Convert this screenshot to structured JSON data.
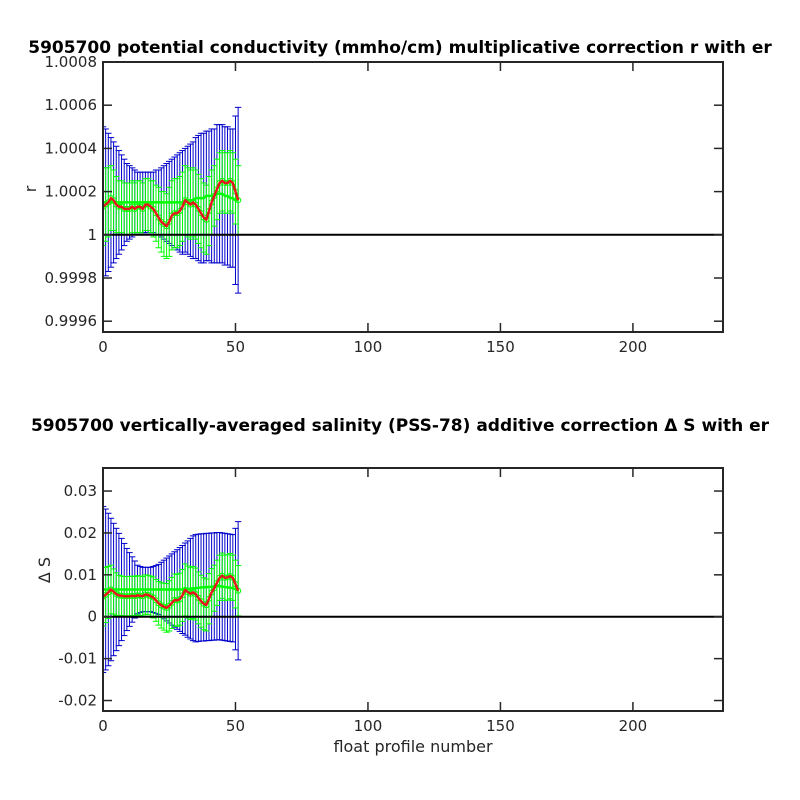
{
  "chart_data": [
    {
      "type": "line",
      "title": "5905700 potential conductivity (mmho/cm) multiplicative correction r with er",
      "xlabel": "",
      "ylabel": "r",
      "xlim": [
        0,
        234
      ],
      "ylim": [
        0.99955,
        1.0008
      ],
      "xticks": [
        0,
        50,
        100,
        150,
        200
      ],
      "xtick_labels": [
        "0",
        "50",
        "100",
        "150",
        "200"
      ],
      "yticks": [
        0.9996,
        0.9998,
        1.0,
        1.0002,
        1.0004,
        1.0006,
        1.0008
      ],
      "ytick_labels": [
        "0.9996",
        "0.9998",
        "1",
        "1.0002",
        "1.0004",
        "1.0006",
        "1.0008"
      ],
      "grid": false,
      "reference_line": 1.0,
      "colors": {
        "estimate": "#e31a1c",
        "estimate_error": "#00ff00",
        "error_bound": "#0000cc",
        "reference": "#000000"
      },
      "x": [
        0,
        1,
        2,
        3,
        4,
        5,
        6,
        7,
        8,
        9,
        10,
        11,
        12,
        13,
        14,
        15,
        16,
        17,
        18,
        19,
        20,
        21,
        22,
        23,
        24,
        25,
        26,
        27,
        28,
        29,
        30,
        31,
        32,
        33,
        34,
        35,
        36,
        37,
        38,
        39,
        40,
        41,
        42,
        43,
        44,
        45,
        46,
        47,
        48,
        49,
        50,
        51
      ],
      "series": [
        {
          "role": "estimate",
          "y": [
            1.00013,
            1.00014,
            1.00015,
            1.00017,
            1.00016,
            1.00014,
            1.00013,
            1.00013,
            1.00012,
            1.00012,
            1.00012,
            1.00013,
            1.00012,
            1.00013,
            1.00013,
            1.00012,
            1.00014,
            1.00014,
            1.00013,
            1.00012,
            1.0001,
            1.00008,
            1.00006,
            1.00005,
            1.00004,
            1.00006,
            1.00009,
            1.0001,
            1.0001,
            1.00011,
            1.00013,
            1.00016,
            1.00015,
            1.00014,
            1.00015,
            1.00014,
            1.00012,
            1.0001,
            1.00008,
            1.00007,
            1.00011,
            1.00015,
            1.00018,
            1.00021,
            1.00024,
            1.00025,
            1.00024,
            1.00024,
            1.00025,
            1.00024,
            1.0002,
            1.00016
          ],
          "err": [
            0.00018,
            0.00017,
            0.00016,
            0.00015,
            0.00014,
            0.00013,
            0.00012,
            0.00012,
            0.00012,
            0.00012,
            0.00012,
            0.00012,
            0.00012,
            0.00012,
            0.00012,
            0.00012,
            0.00012,
            0.00012,
            0.00012,
            0.00013,
            0.00013,
            0.00014,
            0.00014,
            0.00015,
            0.00015,
            0.00016,
            0.00016,
            0.00016,
            0.00016,
            0.00016,
            0.00016,
            0.00016,
            0.00016,
            0.00016,
            0.00016,
            0.00016,
            0.00016,
            0.00016,
            0.00016,
            0.00016,
            0.00016,
            0.00015,
            0.00014,
            0.00014,
            0.00014,
            0.00014,
            0.00014,
            0.00014,
            0.00014,
            0.00014,
            0.00015,
            0.00016
          ]
        },
        {
          "role": "error_bound",
          "y": [
            1.00015,
            1.00015,
            1.00015,
            1.00015,
            1.00015,
            1.00015,
            1.00015,
            1.00015,
            1.00015,
            1.00015,
            1.00015,
            1.00015,
            1.00015,
            1.00015,
            1.00015,
            1.00015,
            1.00015,
            1.00015,
            1.00015,
            1.00015,
            1.00015,
            1.00015,
            1.00015,
            1.00015,
            1.00015,
            1.00015,
            1.00015,
            1.00015,
            1.00015,
            1.00015,
            1.00015,
            1.00016,
            1.00016,
            1.00016,
            1.00016,
            1.00017,
            1.00017,
            1.00017,
            1.00017,
            1.00018,
            1.00018,
            1.00018,
            1.00018,
            1.00019,
            1.00019,
            1.00019,
            1.00018,
            1.00018,
            1.00017,
            1.00017,
            1.00016,
            1.00016
          ],
          "err": [
            0.00035,
            0.00034,
            0.00032,
            0.0003,
            0.00028,
            0.00026,
            0.00024,
            0.00022,
            0.0002,
            0.00018,
            0.00017,
            0.00016,
            0.00015,
            0.00014,
            0.00014,
            0.00014,
            0.00014,
            0.00014,
            0.00014,
            0.00014,
            0.00015,
            0.00015,
            0.00016,
            0.00017,
            0.00018,
            0.00019,
            0.0002,
            0.00021,
            0.00022,
            0.00023,
            0.00024,
            0.00024,
            0.00025,
            0.00026,
            0.00027,
            0.00028,
            0.00029,
            0.0003,
            0.0003,
            0.0003,
            0.0003,
            0.00031,
            0.00031,
            0.00032,
            0.00032,
            0.00032,
            0.00032,
            0.00032,
            0.00032,
            0.00032,
            0.00039,
            0.00043
          ]
        }
      ]
    },
    {
      "type": "line",
      "title": "5905700 vertically-averaged salinity (PSS-78) additive correction Δ S with er",
      "xlabel": "float profile number",
      "ylabel": "Δ S",
      "xlim": [
        0,
        234
      ],
      "ylim": [
        -0.0225,
        0.0355
      ],
      "xticks": [
        0,
        50,
        100,
        150,
        200
      ],
      "xtick_labels": [
        "0",
        "50",
        "100",
        "150",
        "200"
      ],
      "yticks": [
        -0.02,
        -0.01,
        0,
        0.01,
        0.02,
        0.03
      ],
      "ytick_labels": [
        "-0.02",
        "-0.01",
        "0",
        "0.01",
        "0.02",
        "0.03"
      ],
      "grid": false,
      "reference_line": 0,
      "colors": {
        "estimate": "#e31a1c",
        "estimate_error": "#00ff00",
        "error_bound": "#0000cc",
        "reference": "#000000"
      },
      "x": [
        0,
        1,
        2,
        3,
        4,
        5,
        6,
        7,
        8,
        9,
        10,
        11,
        12,
        13,
        14,
        15,
        16,
        17,
        18,
        19,
        20,
        21,
        22,
        23,
        24,
        25,
        26,
        27,
        28,
        29,
        30,
        31,
        32,
        33,
        34,
        35,
        36,
        37,
        38,
        39,
        40,
        41,
        42,
        43,
        44,
        45,
        46,
        47,
        48,
        49,
        50,
        51
      ],
      "series": [
        {
          "role": "estimate",
          "y": [
            0.0048,
            0.0052,
            0.0058,
            0.0065,
            0.006,
            0.0054,
            0.0051,
            0.005,
            0.0049,
            0.0049,
            0.0049,
            0.005,
            0.0049,
            0.0051,
            0.005,
            0.0049,
            0.0053,
            0.0052,
            0.0049,
            0.0046,
            0.0039,
            0.0032,
            0.0027,
            0.0024,
            0.0021,
            0.0026,
            0.0033,
            0.004,
            0.0039,
            0.0042,
            0.0051,
            0.0064,
            0.0059,
            0.0055,
            0.0058,
            0.0054,
            0.0045,
            0.0037,
            0.0031,
            0.0028,
            0.0043,
            0.0058,
            0.0068,
            0.0081,
            0.0093,
            0.0098,
            0.0093,
            0.0094,
            0.0097,
            0.0093,
            0.0078,
            0.0062
          ],
          "err": [
            0.007,
            0.0066,
            0.0062,
            0.0058,
            0.0054,
            0.0051,
            0.0048,
            0.0047,
            0.0047,
            0.0047,
            0.0047,
            0.0047,
            0.0047,
            0.0047,
            0.0047,
            0.0047,
            0.0047,
            0.0047,
            0.0048,
            0.0049,
            0.005,
            0.0052,
            0.0054,
            0.0056,
            0.0058,
            0.006,
            0.0061,
            0.0062,
            0.0062,
            0.0062,
            0.0062,
            0.0062,
            0.0062,
            0.0062,
            0.0062,
            0.0062,
            0.0062,
            0.0062,
            0.0062,
            0.0062,
            0.006,
            0.0057,
            0.0055,
            0.0054,
            0.0054,
            0.0054,
            0.0054,
            0.0054,
            0.0054,
            0.0054,
            0.0057,
            0.006
          ]
        },
        {
          "role": "error_bound",
          "y": [
            0.0065,
            0.0065,
            0.0065,
            0.0065,
            0.0065,
            0.0065,
            0.0065,
            0.0065,
            0.0065,
            0.0065,
            0.0065,
            0.0065,
            0.0065,
            0.0065,
            0.0065,
            0.0065,
            0.0065,
            0.0065,
            0.0065,
            0.0065,
            0.0065,
            0.0065,
            0.0065,
            0.0065,
            0.0065,
            0.0065,
            0.0065,
            0.0065,
            0.0065,
            0.0065,
            0.0065,
            0.0066,
            0.0066,
            0.0067,
            0.0068,
            0.0068,
            0.0069,
            0.007,
            0.007,
            0.0071,
            0.0071,
            0.0072,
            0.0072,
            0.0073,
            0.0073,
            0.0072,
            0.0071,
            0.007,
            0.0069,
            0.0068,
            0.0066,
            0.0062
          ],
          "err": [
            0.0198,
            0.0192,
            0.0182,
            0.017,
            0.0158,
            0.0146,
            0.0134,
            0.0122,
            0.011,
            0.0098,
            0.0088,
            0.0078,
            0.0068,
            0.0058,
            0.0055,
            0.0053,
            0.0053,
            0.0053,
            0.0053,
            0.0055,
            0.0057,
            0.006,
            0.0065,
            0.007,
            0.0075,
            0.008,
            0.0085,
            0.009,
            0.0095,
            0.01,
            0.0105,
            0.011,
            0.0115,
            0.012,
            0.0125,
            0.0128,
            0.0128,
            0.0128,
            0.0128,
            0.0128,
            0.0128,
            0.0128,
            0.0128,
            0.0128,
            0.0128,
            0.0128,
            0.0128,
            0.0128,
            0.0128,
            0.0128,
            0.0145,
            0.0165
          ]
        }
      ]
    }
  ]
}
